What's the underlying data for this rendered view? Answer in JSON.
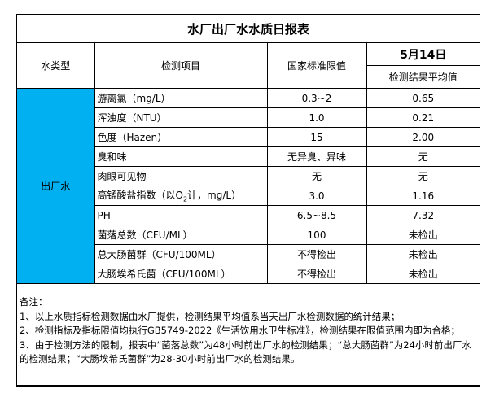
{
  "title": "水厂出厂水水质日报表",
  "header": {
    "water_type": "水类型",
    "item": "检测项目",
    "limit": "国家标准限值",
    "date": "5月14日",
    "result": "检测结果平均值"
  },
  "water_type_value": "出厂水",
  "water_type_color": "#00b0f0",
  "rows": [
    {
      "item": "游离氯（mg/L）",
      "limit": "0.3~2",
      "result": "0.65"
    },
    {
      "item": "浑浊度（NTU）",
      "limit": "1.0",
      "result": "0.21"
    },
    {
      "item": "色度（Hazen）",
      "limit": "15",
      "result": "2.00"
    },
    {
      "item": "臭和味",
      "limit": "无异臭、异味",
      "result": "无"
    },
    {
      "item": "肉眼可见物",
      "limit": "无",
      "result": "无"
    },
    {
      "item_pre": "高锰酸盐指数（以O",
      "item_sub": "2",
      "item_post": "计，mg/L）",
      "limit": "3.0",
      "result": "1.16"
    },
    {
      "item": "PH",
      "limit": "6.5~8.5",
      "result": "7.32"
    },
    {
      "item": "菌落总数（CFU/ML）",
      "limit": "100",
      "result": "未检出"
    },
    {
      "item": "总大肠菌群（CFU/100ML）",
      "limit": "不得检出",
      "result": "未检出"
    },
    {
      "item": "大肠埃希氏菌（CFU/100ML）",
      "limit": "不得检出",
      "result": "未检出"
    }
  ],
  "notes": {
    "heading": "备注：",
    "lines": [
      "1、以上水质指标检测数据由水厂提供，检测结果平均值系当天出厂水检测数据的统计结果；",
      "2、检测指标及指标限值均执行GB5749-2022《生活饮用水卫生标准》，检测结果在限值范围内即为合格；",
      "3、由于检测方法的限制，报表中“菌落总数”为48小时前出厂水的检测结果；“总大肠菌群”为24小时前出厂水的检测结果；“大肠埃希氏菌群”为28-30小时前出厂水的检测结果。"
    ]
  }
}
